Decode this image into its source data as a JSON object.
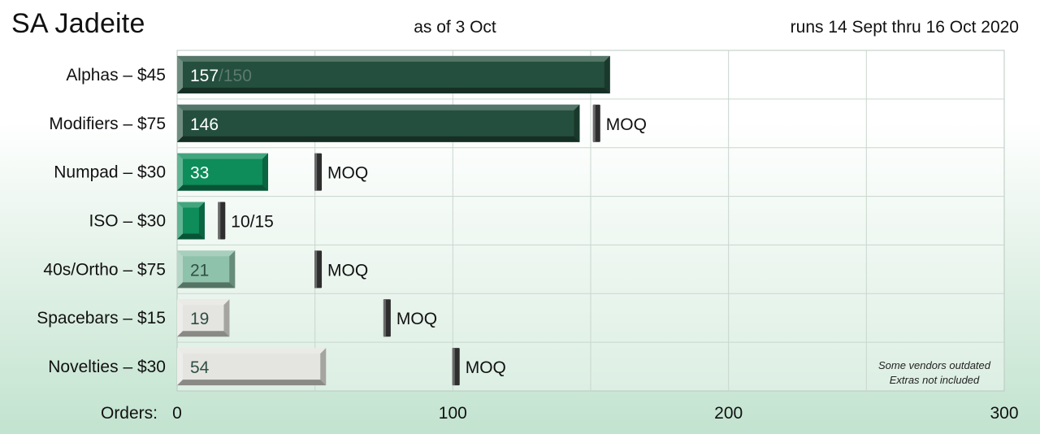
{
  "header": {
    "title": "SA Jadeite",
    "as_of": "as of 3 Oct",
    "runs": "runs 14 Sept thru 16 Oct 2020"
  },
  "notes": {
    "line1": "Some vendors outdated",
    "line2": "Extras not included"
  },
  "colors": {
    "dark_green": "#244f3e",
    "bright_green": "#0e8c5a",
    "muted_green": "#8fc2aa",
    "light_grey": "#e4e4e0",
    "moq_marker": "#333333"
  },
  "chart_data": {
    "type": "bar",
    "orientation": "horizontal",
    "x_axis_label": "Orders:",
    "xlim": [
      0,
      300
    ],
    "x_ticks": [
      0,
      100,
      200,
      300
    ],
    "grid": true,
    "categories": [
      "Alphas – $45",
      "Modifiers – $75",
      "Numpad – $30",
      "ISO – $30",
      "40s/Ortho – $75",
      "Spacebars – $15",
      "Novelties – $30"
    ],
    "values": [
      157,
      146,
      33,
      10,
      21,
      19,
      54
    ],
    "bar_labels": [
      "157",
      "146",
      "33",
      "",
      "21",
      "19",
      "54"
    ],
    "bar_label_suffix": [
      "/150",
      "",
      "",
      "",
      "",
      "",
      ""
    ],
    "moq": [
      null,
      152,
      51,
      16,
      51,
      76,
      101
    ],
    "moq_labels": [
      "",
      "MOQ",
      "MOQ",
      "10/15",
      "MOQ",
      "MOQ",
      "MOQ"
    ],
    "bar_colors": [
      "#244f3e",
      "#244f3e",
      "#0e8c5a",
      "#0e8c5a",
      "#8fc2aa",
      "#e4e4e0",
      "#e4e4e0"
    ]
  }
}
